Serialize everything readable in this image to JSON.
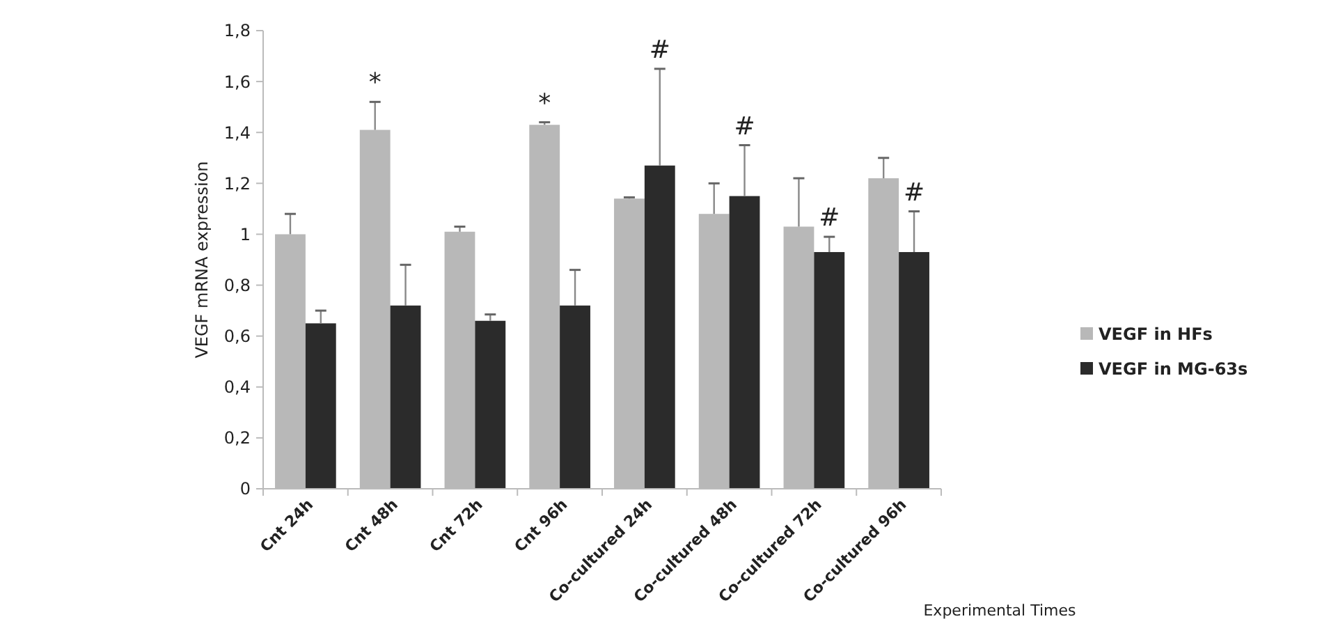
{
  "chart_data": {
    "type": "bar",
    "xlabel": "Experimental Times",
    "ylabel": "VEGF mRNA expression",
    "categories": [
      "Cnt 24h",
      "Cnt 48h",
      "Cnt 72h",
      "Cnt 96h",
      "Co-cultured 24h",
      "Co-cultured 48h",
      "Co-cultured 72h",
      "Co-cultured 96h"
    ],
    "series": [
      {
        "name": "VEGF in HFs",
        "color": "#b8b8b8",
        "values": [
          1.0,
          1.41,
          1.01,
          1.43,
          1.14,
          1.08,
          1.03,
          1.22
        ],
        "errors": [
          [
            1.0,
            1.08
          ],
          [
            1.41,
            1.52
          ],
          [
            1.01,
            1.03
          ],
          [
            1.43,
            1.44
          ],
          [
            1.14,
            1.145
          ],
          [
            1.08,
            1.2
          ],
          [
            1.03,
            1.22
          ],
          [
            1.22,
            1.3
          ]
        ]
      },
      {
        "name": "VEGF in MG-63s",
        "color": "#2b2b2b",
        "values": [
          0.65,
          0.72,
          0.66,
          0.72,
          1.27,
          1.15,
          0.93,
          0.93
        ],
        "errors": [
          [
            0.65,
            0.7
          ],
          [
            0.72,
            0.88
          ],
          [
            0.66,
            0.685
          ],
          [
            0.72,
            0.86
          ],
          [
            1.27,
            1.65
          ],
          [
            1.15,
            1.35
          ],
          [
            0.93,
            0.99
          ],
          [
            0.93,
            1.09
          ]
        ]
      }
    ],
    "ylim": [
      0,
      1.8
    ],
    "yticks": [
      {
        "value": 0,
        "label": "0"
      },
      {
        "value": 0.2,
        "label": "0,2"
      },
      {
        "value": 0.4,
        "label": "0,4"
      },
      {
        "value": 0.6,
        "label": "0,6"
      },
      {
        "value": 0.8,
        "label": "0,8"
      },
      {
        "value": 1,
        "label": "1"
      },
      {
        "value": 1.2,
        "label": "1,2"
      },
      {
        "value": 1.4,
        "label": "1,4"
      },
      {
        "value": 1.6,
        "label": "1,6"
      },
      {
        "value": 1.8,
        "label": "1,8"
      }
    ],
    "grid": false,
    "legend": "right",
    "annotations": [
      {
        "text": "*",
        "x": "Cnt 48h",
        "y": 1.41
      },
      {
        "text": "*",
        "x": "Cnt 96h",
        "y": 1.43
      },
      {
        "text": "#",
        "x": "Co-cultured 24h",
        "y": 1.65
      },
      {
        "text": "#",
        "x": "Co-cultured 48h",
        "y": 1.15
      },
      {
        "text": "#",
        "x": "Co-cultured 72h",
        "y": 0.93
      },
      {
        "text": "#",
        "x": "Co-cultured 96h",
        "y": 0.93
      }
    ]
  }
}
